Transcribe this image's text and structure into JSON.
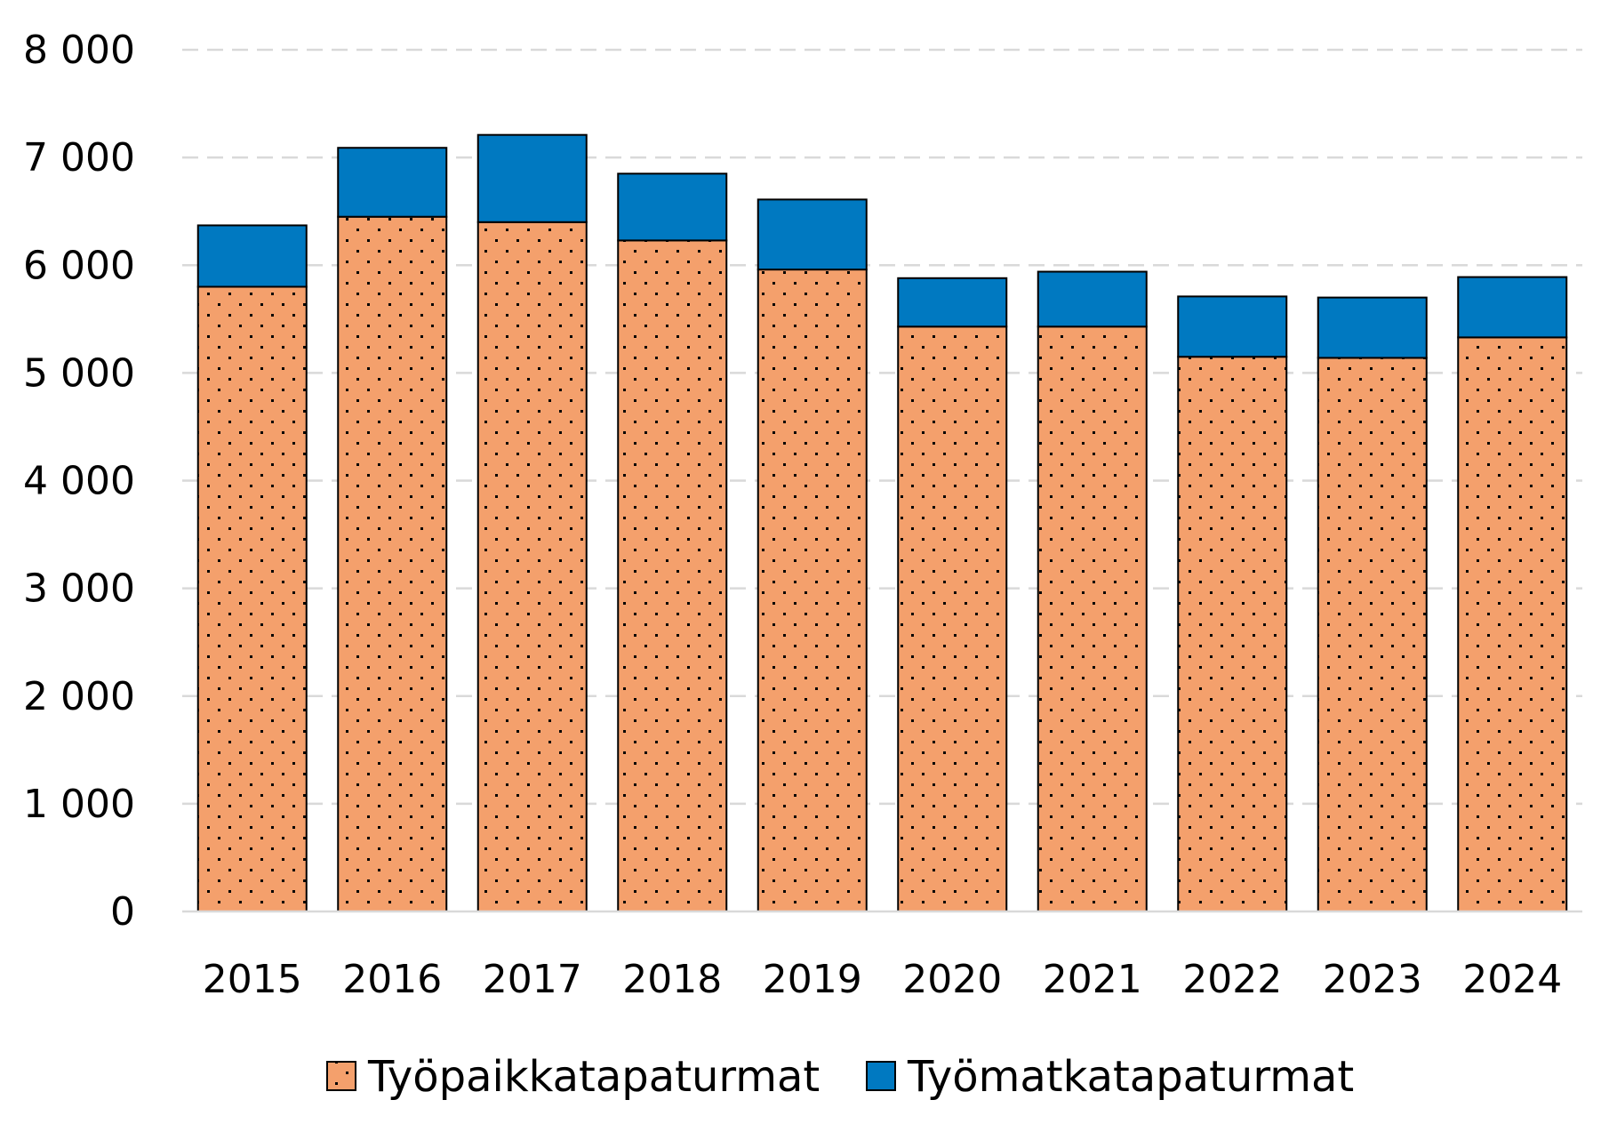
{
  "chart_data": {
    "type": "bar",
    "stacked": true,
    "categories": [
      "2015",
      "2016",
      "2017",
      "2018",
      "2019",
      "2020",
      "2021",
      "2022",
      "2023",
      "2024"
    ],
    "series": [
      {
        "name": "Työpaikkatapaturmat",
        "color": "#F4A06C",
        "pattern": "dots",
        "values": [
          5800,
          6450,
          6400,
          6230,
          5960,
          5430,
          5430,
          5150,
          5140,
          5330
        ]
      },
      {
        "name": "Työmatkatapaturmat",
        "color": "#0079C1",
        "values": [
          570,
          640,
          810,
          620,
          650,
          450,
          510,
          560,
          560,
          560
        ]
      }
    ],
    "ylim": [
      0,
      8000
    ],
    "yticks": [
      0,
      1000,
      2000,
      3000,
      4000,
      5000,
      6000,
      7000,
      8000
    ],
    "ytick_labels": [
      "0",
      "1 000",
      "2 000",
      "3 000",
      "4 000",
      "5 000",
      "6 000",
      "7 000",
      "8 000"
    ],
    "title": "",
    "xlabel": "",
    "ylabel": "",
    "grid": true,
    "legend_position": "bottom"
  }
}
